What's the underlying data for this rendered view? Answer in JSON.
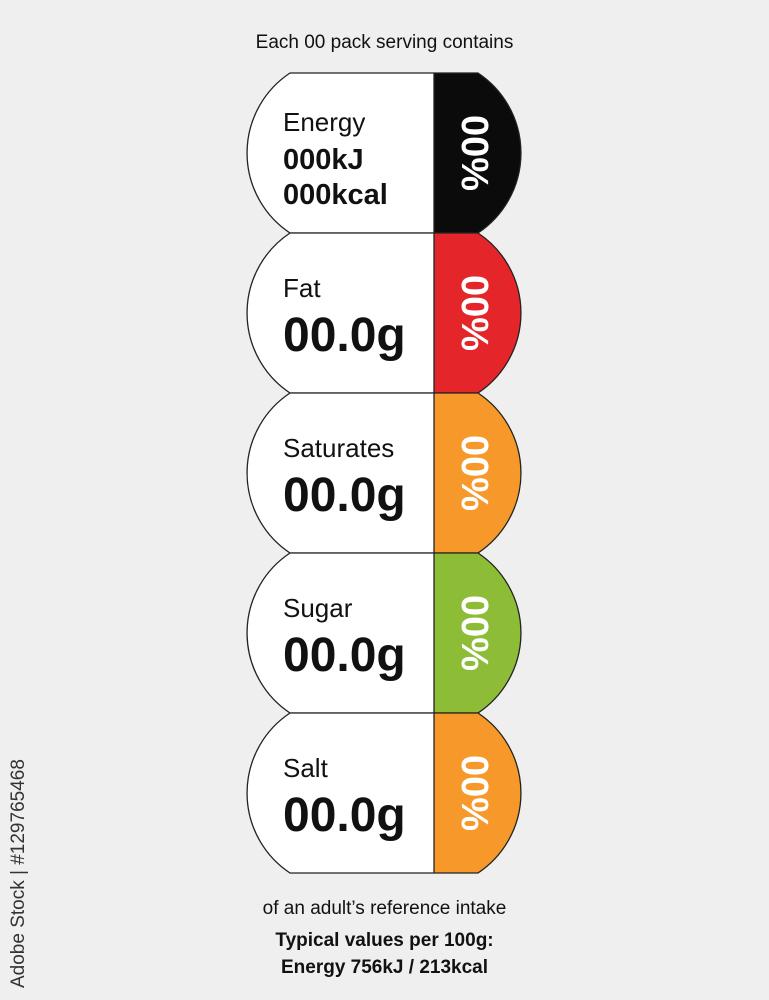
{
  "header": "Each 00 pack serving contains",
  "items": [
    {
      "name": "Energy",
      "lines": [
        "000kJ",
        "000kcal"
      ],
      "percent": "00%",
      "color": "#0b0b0b"
    },
    {
      "name": "Fat",
      "value": "00.0g",
      "percent": "00%",
      "color": "#e4262a"
    },
    {
      "name": "Saturates",
      "value": "00.0g",
      "percent": "00%",
      "color": "#f7992a"
    },
    {
      "name": "Sugar",
      "value": "00.0g",
      "percent": "00%",
      "color": "#8dbd36"
    },
    {
      "name": "Salt",
      "value": "00.0g",
      "percent": "00%",
      "color": "#f7992a"
    }
  ],
  "footer": {
    "reference": "of an adult’s reference intake",
    "typical_title": "Typical values per 100g:",
    "typical_energy": "Energy 756kJ / 213kcal"
  },
  "watermark": "Adobe Stock | #129765468"
}
